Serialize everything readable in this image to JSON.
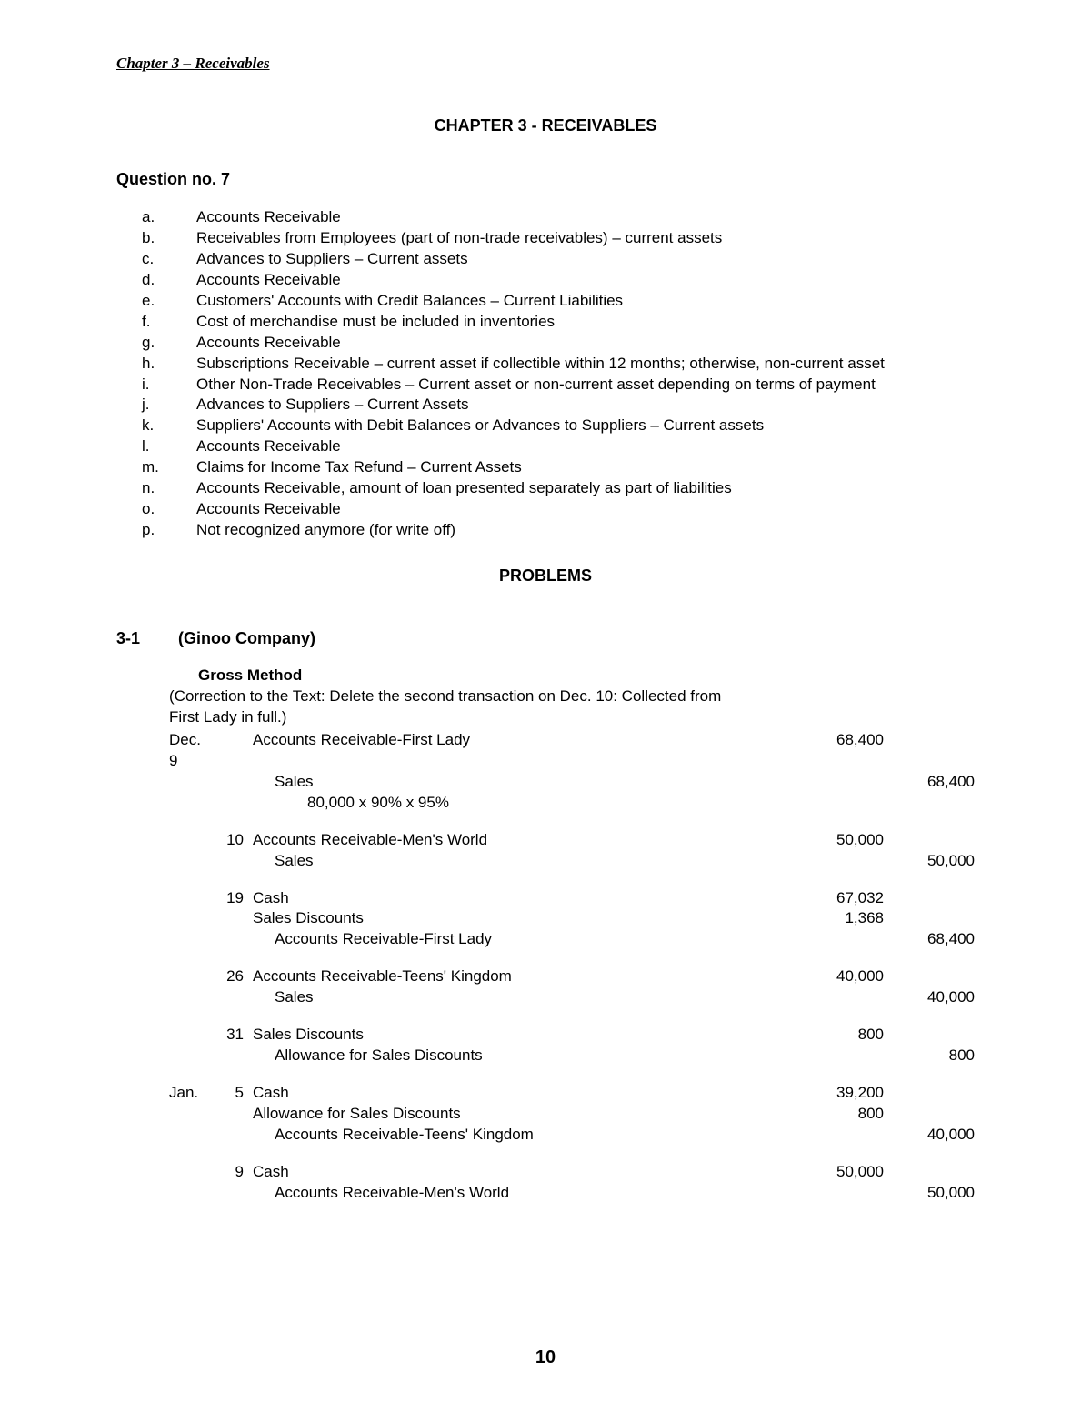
{
  "running_header": "Chapter 3 – Receivables",
  "chapter_title": "CHAPTER 3 - RECEIVABLES",
  "question_heading": "Question no. 7",
  "q_items": [
    {
      "marker": "a.",
      "text": "Accounts Receivable",
      "justify": false
    },
    {
      "marker": "b.",
      "text": "Receivables from Employees (part of non-trade receivables) – current assets",
      "justify": false
    },
    {
      "marker": "c.",
      "text": "Advances to Suppliers – Current assets",
      "justify": false
    },
    {
      "marker": "d.",
      "text": "Accounts Receivable",
      "justify": false
    },
    {
      "marker": "e.",
      "text": "Customers' Accounts with Credit Balances – Current Liabilities",
      "justify": false
    },
    {
      "marker": "f.",
      "text": "Cost of merchandise must be included in inventories",
      "justify": false
    },
    {
      "marker": "g.",
      "text": "Accounts Receivable",
      "justify": false
    },
    {
      "marker": "h.",
      "text": "Subscriptions Receivable – current asset if collectible within 12 months; otherwise, non-current asset",
      "justify": true
    },
    {
      "marker": "i.",
      "text": "Other Non-Trade Receivables – Current asset or non-current asset depending on terms of payment",
      "justify": true
    },
    {
      "marker": "j.",
      "text": "Advances to Suppliers – Current Assets",
      "justify": false
    },
    {
      "marker": "k.",
      "text": "Suppliers' Accounts with Debit Balances or Advances to Suppliers – Current assets",
      "justify": false
    },
    {
      "marker": "l.",
      "text": "Accounts Receivable",
      "justify": false
    },
    {
      "marker": "m.",
      "text": "Claims for Income Tax Refund – Current Assets",
      "justify": false
    },
    {
      "marker": "n.",
      "text": "Accounts Receivable, amount of loan presented separately as part of liabilities",
      "justify": false
    },
    {
      "marker": "o.",
      "text": "Accounts Receivable",
      "justify": false
    },
    {
      "marker": "p.",
      "text": "Not recognized anymore (for write off)",
      "justify": false
    }
  ],
  "problems_heading": "PROBLEMS",
  "problem_num": "3-1",
  "problem_company": "(Ginoo Company)",
  "method_heading": "Gross Method",
  "correction_line1": "(Correction to the Text:  Delete the second transaction on Dec. 10:  Collected from",
  "correction_line2": "First Lady in full.)",
  "journal": [
    {
      "month": "Dec.",
      "day": "",
      "desc": "Accounts Receivable-First Lady",
      "indent": 0,
      "debit": "68,400",
      "credit": ""
    },
    {
      "month": "9",
      "day": "",
      "desc": "",
      "indent": 0,
      "debit": "",
      "credit": ""
    },
    {
      "month": "",
      "day": "",
      "desc": "Sales",
      "indent": 1,
      "debit": "",
      "credit": "68,400"
    },
    {
      "month": "",
      "day": "",
      "desc": "80,000 x 90% x 95%",
      "indent": 2,
      "debit": "",
      "credit": ""
    },
    {
      "spacer": true
    },
    {
      "month": "",
      "day": "10",
      "desc": "Accounts Receivable-Men's World",
      "indent": 0,
      "debit": "50,000",
      "credit": ""
    },
    {
      "month": "",
      "day": "",
      "desc": "Sales",
      "indent": 1,
      "debit": "",
      "credit": "50,000"
    },
    {
      "spacer": true
    },
    {
      "month": "",
      "day": "19",
      "desc": "Cash",
      "indent": 0,
      "debit": "67,032",
      "credit": ""
    },
    {
      "month": "",
      "day": "",
      "desc": "Sales Discounts",
      "indent": 0,
      "debit": "1,368",
      "credit": ""
    },
    {
      "month": "",
      "day": "",
      "desc": "Accounts Receivable-First Lady",
      "indent": 1,
      "debit": "",
      "credit": "68,400"
    },
    {
      "spacer": true
    },
    {
      "month": "",
      "day": "26",
      "desc": "Accounts Receivable-Teens' Kingdom",
      "indent": 0,
      "debit": "40,000",
      "credit": ""
    },
    {
      "month": "",
      "day": "",
      "desc": "Sales",
      "indent": 1,
      "debit": "",
      "credit": "40,000"
    },
    {
      "spacer": true
    },
    {
      "month": "",
      "day": "31",
      "desc": "Sales Discounts",
      "indent": 0,
      "debit": "800",
      "credit": ""
    },
    {
      "month": "",
      "day": "",
      "desc": "Allowance for Sales Discounts",
      "indent": 1,
      "debit": "",
      "credit": "800"
    },
    {
      "spacer": true
    },
    {
      "month": "Jan.",
      "day": "5",
      "desc": "Cash",
      "indent": 0,
      "debit": "39,200",
      "credit": ""
    },
    {
      "month": "",
      "day": "",
      "desc": "Allowance for Sales Discounts",
      "indent": 0,
      "debit": "800",
      "credit": ""
    },
    {
      "month": "",
      "day": "",
      "desc": "Accounts Receivable-Teens' Kingdom",
      "indent": 1,
      "debit": "",
      "credit": "40,000"
    },
    {
      "spacer": true
    },
    {
      "month": "",
      "day": "9",
      "desc": "Cash",
      "indent": 0,
      "debit": "50,000",
      "credit": ""
    },
    {
      "month": "",
      "day": "",
      "desc": "Accounts Receivable-Men's World",
      "indent": 1,
      "debit": "",
      "credit": "50,000"
    }
  ],
  "page_number": "10"
}
